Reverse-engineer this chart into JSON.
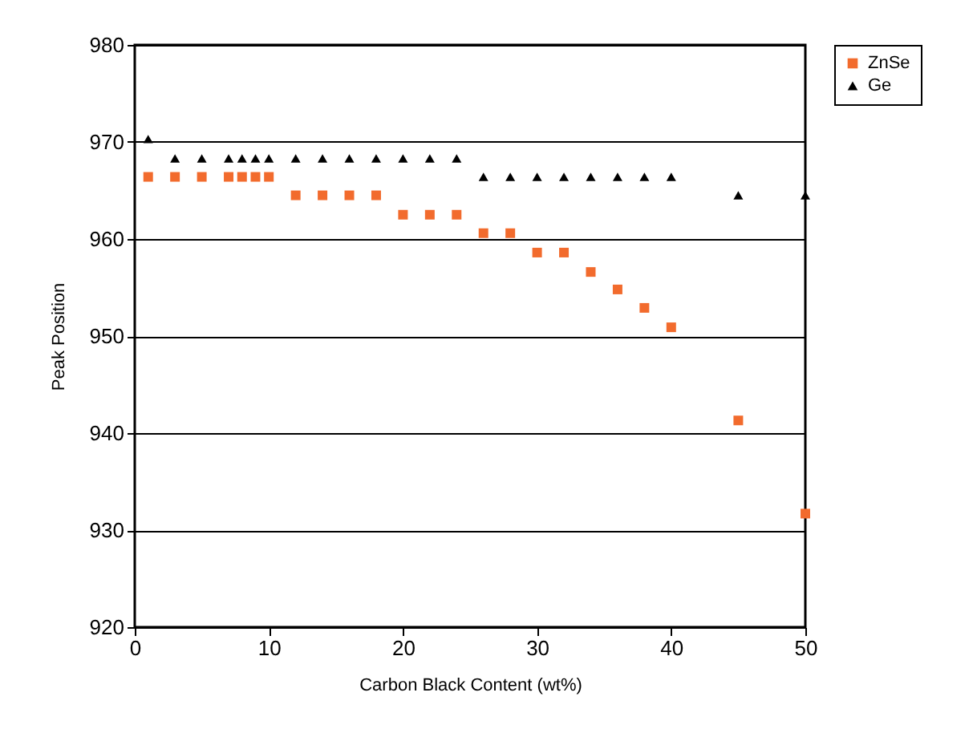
{
  "chart_data": {
    "type": "scatter",
    "xlabel": "Carbon Black Content (wt%)",
    "ylabel": "Peak Position",
    "x": [
      1,
      3,
      5,
      7,
      8,
      9,
      10,
      12,
      14,
      16,
      18,
      20,
      22,
      24,
      26,
      28,
      30,
      32,
      34,
      36,
      38,
      40,
      45,
      50
    ],
    "series": [
      {
        "name": "ZnSe",
        "color": "#f26b2d",
        "marker": "square",
        "values": [
          966.4,
          966.4,
          966.4,
          966.4,
          966.4,
          966.4,
          966.4,
          964.5,
          964.5,
          964.5,
          964.5,
          962.5,
          962.5,
          962.5,
          960.6,
          960.6,
          958.6,
          958.6,
          956.6,
          954.8,
          952.9,
          950.9,
          941.3,
          931.7
        ]
      },
      {
        "name": "Ge",
        "color": "#000000",
        "marker": "triangle",
        "values": [
          970.3,
          968.3,
          968.3,
          968.3,
          968.3,
          968.3,
          968.3,
          968.3,
          968.3,
          968.3,
          968.3,
          968.3,
          968.3,
          968.3,
          966.4,
          966.4,
          966.4,
          966.4,
          966.4,
          966.4,
          966.4,
          966.4,
          964.5,
          964.5
        ]
      }
    ],
    "xlim": [
      0,
      50
    ],
    "xticks": [
      0,
      10,
      20,
      30,
      40,
      50
    ],
    "ylim": [
      920,
      980
    ],
    "yticks": [
      920,
      930,
      940,
      950,
      960,
      970,
      980
    ],
    "grid": "y",
    "legend": "right"
  }
}
